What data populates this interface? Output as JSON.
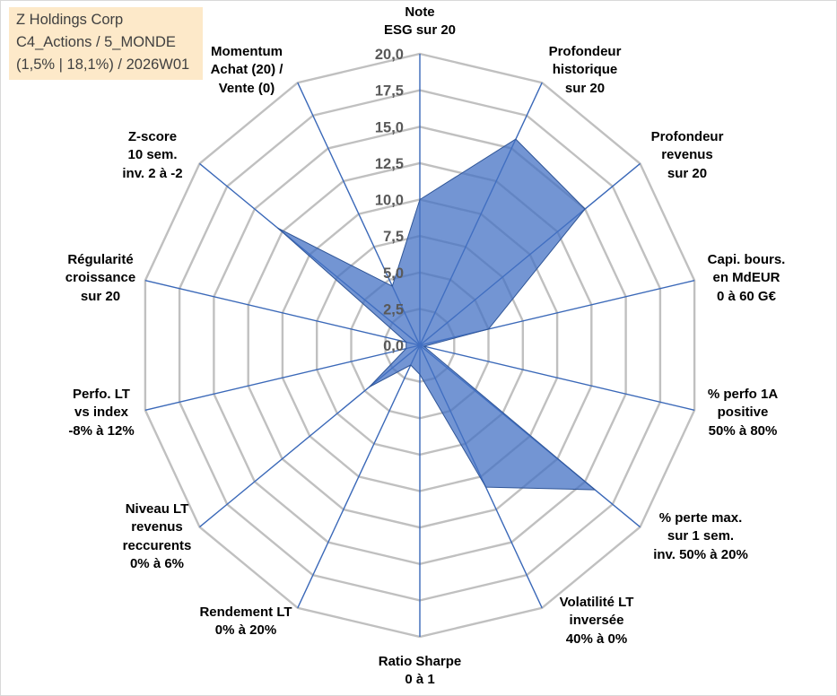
{
  "info_box": {
    "title": "Z Holdings Corp",
    "subtitle": "C4_Actions / 5_MONDE",
    "detail": "(1,5% | 18,1%) / 2026W01",
    "background": "#fde9c9"
  },
  "chart_data": {
    "type": "area",
    "polar": true,
    "categories": [
      "Note\nESG sur 20",
      "Profondeur\nhistorique\nsur 20",
      "Profondeur\nrevenus\nsur 20",
      "Capi. bours.\nen MdEUR\n0 à 60 G€",
      "% perfo 1A\npositive\n50% à 80%",
      "% perte max.\nsur 1 sem.\ninv. 50% à 20%",
      "Volatilité LT\ninversée\n40% à 0%",
      "Ratio Sharpe\n0 à 1",
      "Rendement LT\n0% à 20%",
      "Niveau LT\nrevenus\nreccurents\n0% à 6%",
      "Perfo. LT\nvs index\n-8% à 12%",
      "Régularité\ncroissance\nsur 20",
      "Z-score\n10 sem.\ninv. 2 à -2",
      "Momentum\nAchat (20) /\nVente (0)"
    ],
    "values": [
      10.0,
      15.7,
      15.0,
      5.0,
      0.3,
      15.9,
      10.8,
      2.0,
      1.5,
      4.6,
      1.0,
      1.0,
      12.9,
      4.5
    ],
    "rlim": [
      0,
      20
    ],
    "r_ticks": [
      0,
      2.5,
      5,
      7.5,
      10,
      12.5,
      15,
      17.5,
      20
    ],
    "r_tick_labels": [
      "0,0",
      "2,5",
      "5,0",
      "7,5",
      "10,0",
      "12,5",
      "15,0",
      "17,5",
      "20,0"
    ],
    "grid": true,
    "legend": "none",
    "colors": {
      "fill": "#4472c4",
      "outline": "#2f5597",
      "spokes": "#3a68b8",
      "grid": "#c0c0c0",
      "tick_text": "#595959"
    }
  }
}
